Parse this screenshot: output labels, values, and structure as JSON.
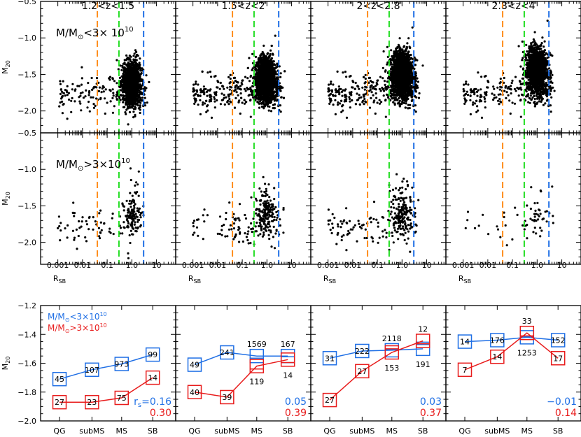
{
  "chart_data": {
    "type": "scatter",
    "panel_titles": [
      "1.2<z<1.5",
      "1.5<z<2",
      "2<z<2.8",
      "2.8<z<4"
    ],
    "scatter": {
      "ylabel": "M20",
      "xlabel": "RSB",
      "x_scale": "log",
      "xlim": [
        0.0002,
        60
      ],
      "ylim": [
        -2.3,
        -0.5
      ],
      "x_ticks": [
        0.001,
        0.01,
        0.1,
        1.0,
        10
      ],
      "x_tick_labels": [
        "0.001",
        "0.01",
        "0.1",
        "1.0",
        "10"
      ],
      "y_ticks": [
        -0.5,
        -1.0,
        -1.5,
        -2.0
      ],
      "y_tick_labels": [
        "−0.5",
        "−1.0",
        "−1.5",
        "−2.0"
      ],
      "vlines": [
        {
          "x": 0.04,
          "color": "#ff8c1a"
        },
        {
          "x": 0.3,
          "color": "#22dd22"
        },
        {
          "x": 3.0,
          "color": "#1f6fe5"
        }
      ],
      "rows": [
        {
          "label_prefix": "M/M",
          "label_sub": "⊙",
          "label_rel": "<3× 10",
          "label_exp": "10",
          "counts": [
            1500,
            2500,
            2300,
            1600
          ]
        },
        {
          "label_prefix": "M/M",
          "label_sub": "⊙",
          "label_rel": ">3×10",
          "label_exp": "10",
          "counts": [
            180,
            260,
            270,
            60
          ]
        }
      ],
      "cluster": [
        {
          "center": [
            1.0,
            -1.62
          ],
          "spread": [
            0.18,
            0.15
          ]
        },
        {
          "center": [
            0.9,
            -1.57
          ],
          "spread": [
            0.2,
            0.14
          ]
        },
        {
          "center": [
            1.0,
            -1.5
          ],
          "spread": [
            0.22,
            0.15
          ]
        },
        {
          "center": [
            1.0,
            -1.45
          ],
          "spread": [
            0.22,
            0.16
          ]
        }
      ]
    },
    "summary": {
      "categories": [
        "QG",
        "subMS",
        "MS",
        "SB"
      ],
      "ylabel": "M20",
      "ylim": [
        -2.0,
        -1.2
      ],
      "y_ticks": [
        -1.2,
        -1.4,
        -1.6,
        -1.8,
        -2.0
      ],
      "y_tick_labels": [
        "−1.2",
        "−1.4",
        "−1.6",
        "−1.8",
        "−2.0"
      ],
      "legend": [
        {
          "text_prefix": "M/M",
          "sub": "⊙",
          "rel": "<3×10",
          "exp": "10",
          "color": "#1f6fe5"
        },
        {
          "text_prefix": "M/M",
          "sub": "⊙",
          "rel": ">3×10",
          "exp": "10",
          "color": "#e81c1c"
        }
      ],
      "rs_label": "r",
      "rs_sub": "s",
      "rs_eq": "=",
      "panels": [
        {
          "low": {
            "values": [
              -1.71,
              -1.645,
              -1.605,
              -1.54
            ],
            "counts": [
              "45",
              "107",
              "973",
              "99"
            ],
            "medians": [
              null,
              null,
              null,
              null
            ],
            "rs": "0.16"
          },
          "high": {
            "values": [
              -1.87,
              -1.87,
              -1.84,
              -1.7
            ],
            "counts": [
              "27",
              "23",
              "75",
              "14"
            ],
            "medians": [
              null,
              null,
              null,
              null
            ],
            "rs": "0.30"
          }
        },
        {
          "low": {
            "values": [
              -1.61,
              -1.525,
              -1.55,
              -1.55
            ],
            "counts": [
              "49",
              "241",
              "1569",
              "167"
            ],
            "medians": [
              null,
              null,
              -1.565,
              -1.555
            ],
            "rs": "0.05"
          },
          "high": {
            "values": [
              -1.8,
              -1.835,
              -1.62,
              -1.575
            ],
            "counts": [
              "40",
              "39",
              "119",
              "14"
            ],
            "medians": [
              null,
              null,
              -1.64,
              -1.595
            ],
            "rs": "0.39"
          }
        },
        {
          "low": {
            "values": [
              -1.565,
              -1.515,
              -1.51,
              -1.5
            ],
            "counts": [
              "31",
              "222",
              "2118",
              "191"
            ],
            "medians": [
              null,
              null,
              -1.505,
              -1.47
            ],
            "rs": "0.03"
          },
          "high": {
            "values": [
              -1.855,
              -1.655,
              -1.525,
              -1.445
            ],
            "counts": [
              "27",
              "27",
              "153",
              "12"
            ],
            "medians": [
              null,
              null,
              -1.5,
              -1.465
            ],
            "rs": "0.37"
          }
        },
        {
          "low": {
            "values": [
              -1.45,
              -1.44,
              -1.42,
              -1.44
            ],
            "counts": [
              "14",
              "176",
              "1253",
              "152"
            ],
            "medians": [
              null,
              null,
              -1.415,
              null
            ],
            "rs": "−0.01"
          },
          "high": {
            "values": [
              -1.645,
              -1.555,
              -1.39,
              -1.565
            ],
            "counts": [
              "7",
              "14",
              "33",
              "17"
            ],
            "medians": [
              null,
              null,
              -1.41,
              null
            ],
            "rs": "0.14"
          }
        }
      ]
    }
  }
}
